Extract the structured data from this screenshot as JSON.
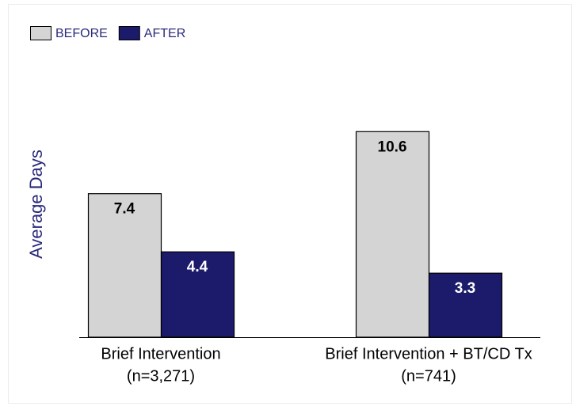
{
  "chart_data": {
    "type": "bar",
    "ylabel": "Average Days",
    "categories": [
      [
        "Brief Intervention",
        "(n=3,271)"
      ],
      [
        "Brief Intervention + BT/CD Tx",
        "(n=741)"
      ]
    ],
    "series": [
      {
        "name": "BEFORE",
        "color": "#d4d4d4",
        "values": [
          7.4,
          10.6
        ]
      },
      {
        "name": "AFTER",
        "color": "#1b1a6b",
        "values": [
          4.4,
          3.3
        ]
      }
    ],
    "ylim": [
      0,
      12
    ],
    "legend": "top-left"
  }
}
